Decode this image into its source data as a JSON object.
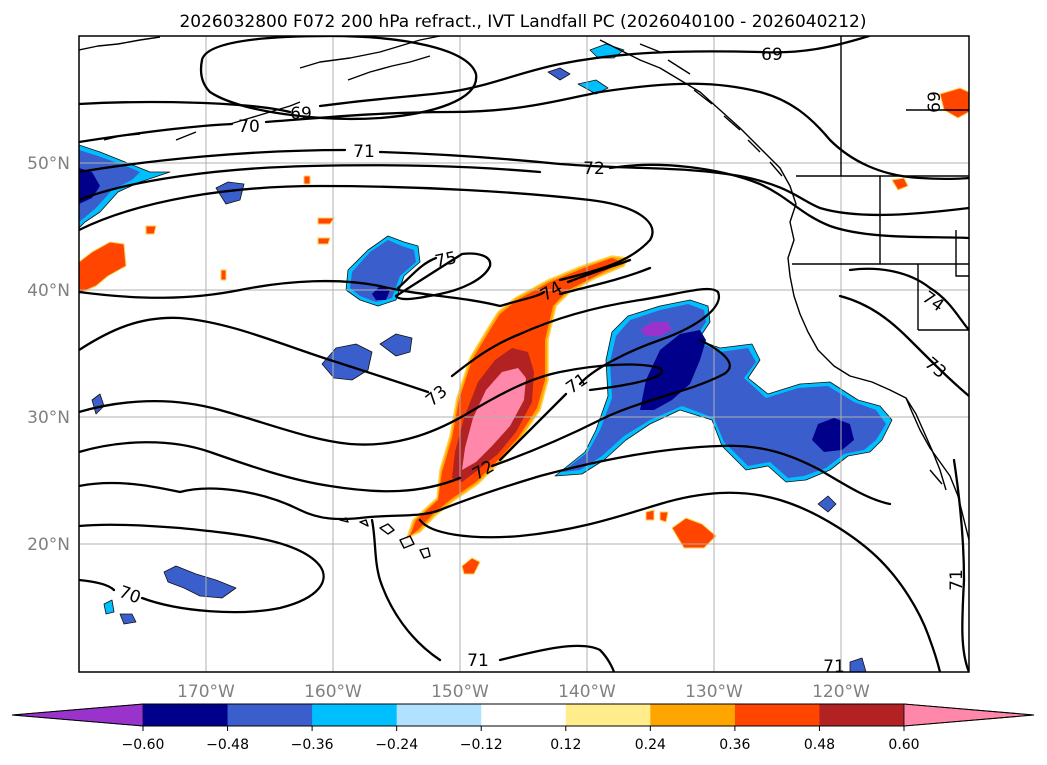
{
  "title": "2026032800 F072 200 hPa refract., IVT Landfall PC (2026040100 - 2026040212)",
  "map": {
    "lon_ticks": [
      "170°W",
      "160°W",
      "150°W",
      "140°W",
      "130°W",
      "120°W"
    ],
    "lat_ticks": [
      "50°N",
      "40°N",
      "30°N",
      "20°N"
    ],
    "contour_labels": [
      "69",
      "69",
      "69",
      "70",
      "70",
      "71",
      "71",
      "71",
      "71",
      "71",
      "72",
      "72",
      "73",
      "73",
      "74",
      "74",
      "75"
    ]
  },
  "colorbar": {
    "ticks": [
      "−0.60",
      "−0.48",
      "−0.36",
      "−0.24",
      "−0.12",
      "0.12",
      "0.24",
      "0.36",
      "0.48",
      "0.60"
    ],
    "colors": [
      "#9933cc",
      "#00008b",
      "#3a5fcd",
      "#00bfff",
      "#b0e2ff",
      "#ffffff",
      "#ffec8b",
      "#ffa500",
      "#ff4500",
      "#b22222",
      "#ff88aa"
    ]
  },
  "colors": {
    "fill_positive_mid": "#ff4500",
    "fill_negative_mid": "#3a5fcd"
  }
}
